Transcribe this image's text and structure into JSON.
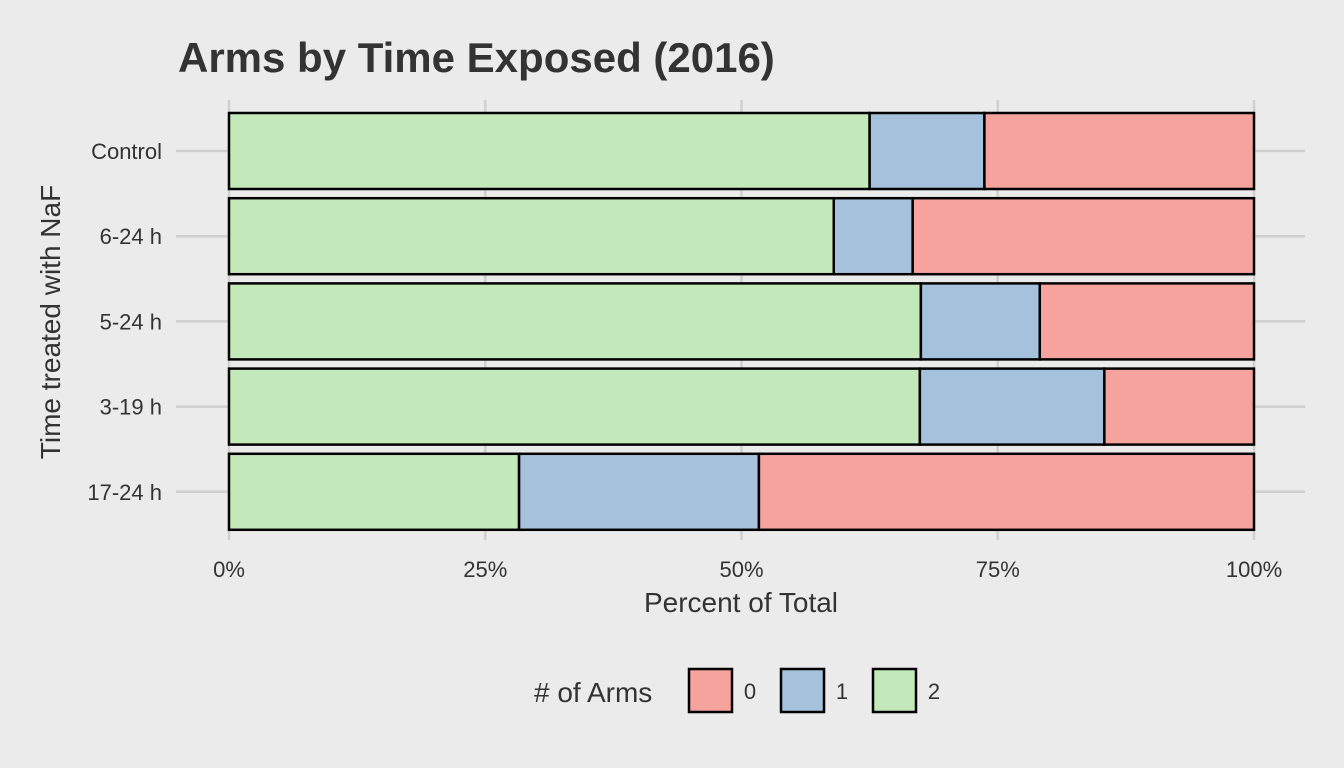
{
  "chart_data": {
    "type": "bar",
    "orientation": "horizontal",
    "stacked": "percent",
    "title": "Arms by Time Exposed (2016)",
    "xlabel": "Percent of Total",
    "ylabel": "Time treated with NaF",
    "categories": [
      "Control",
      "6-24 h",
      "5-24 h",
      "3-19 h",
      "17-24 h"
    ],
    "x_ticks": [
      "0%",
      "25%",
      "50%",
      "75%",
      "100%"
    ],
    "xlim": [
      0,
      100
    ],
    "legend": {
      "title": "# of Arms",
      "position": "bottom"
    },
    "series": [
      {
        "name": "2",
        "color": "#c3e8b9",
        "values": [
          62.5,
          59.0,
          67.5,
          67.4,
          28.3
        ]
      },
      {
        "name": "1",
        "color": "#a6c1dc",
        "values": [
          11.2,
          7.7,
          11.6,
          18.0,
          23.4
        ]
      },
      {
        "name": "0",
        "color": "#f6a39e",
        "values": [
          26.3,
          33.3,
          20.9,
          14.6,
          48.3
        ]
      }
    ],
    "legend_order": [
      "0",
      "1",
      "2"
    ],
    "grid": true
  }
}
